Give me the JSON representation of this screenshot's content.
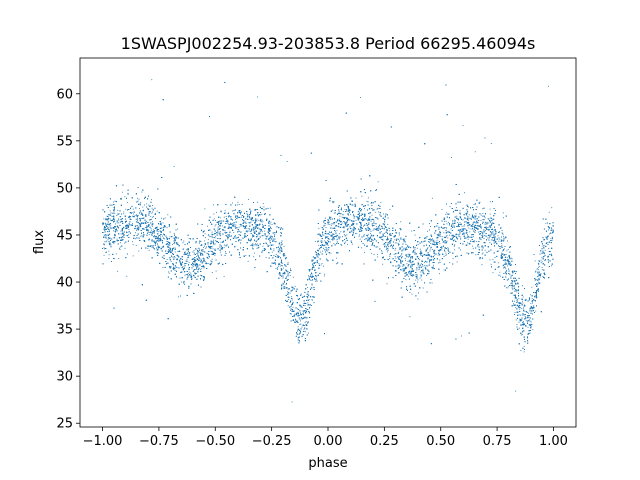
{
  "chart_data": {
    "type": "scatter",
    "title": "1SWASPJ002254.93-203853.8 Period 66295.46094s",
    "xlabel": "phase",
    "ylabel": "flux",
    "xlim": [
      -1.1,
      1.1
    ],
    "ylim": [
      24.6,
      63.8
    ],
    "xticks": [
      -1.0,
      -0.75,
      -0.5,
      -0.25,
      0.0,
      0.25,
      0.5,
      0.75,
      1.0
    ],
    "xtick_labels": [
      "−1.00",
      "−0.75",
      "−0.50",
      "−0.25",
      "0.00",
      "0.25",
      "0.50",
      "0.75",
      "1.00"
    ],
    "yticks": [
      25,
      30,
      35,
      40,
      45,
      50,
      55,
      60
    ],
    "ytick_labels": [
      "25",
      "30",
      "35",
      "40",
      "45",
      "50",
      "55",
      "60"
    ],
    "grid": false,
    "marker_color": "#1f77b4",
    "series": [
      {
        "name": "",
        "x": [
          -1.0,
          -0.95,
          -0.9,
          -0.85,
          -0.8,
          -0.75,
          -0.7,
          -0.65,
          -0.6,
          -0.55,
          -0.5,
          -0.45,
          -0.4,
          -0.35,
          -0.3,
          -0.25,
          -0.2,
          -0.175,
          -0.15,
          -0.125,
          -0.1,
          -0.075,
          -0.05,
          0.0,
          0.05,
          0.1,
          0.15,
          0.2,
          0.25,
          0.3,
          0.35,
          0.4,
          0.45,
          0.5,
          0.55,
          0.6,
          0.65,
          0.7,
          0.75,
          0.8,
          0.825,
          0.85,
          0.875,
          0.9,
          0.925,
          0.95,
          1.0
        ],
        "y": [
          45.2,
          45.8,
          46.3,
          46.4,
          46.0,
          45.0,
          43.5,
          42.2,
          42.0,
          43.0,
          44.5,
          45.5,
          45.8,
          45.7,
          45.3,
          44.5,
          42.0,
          39.0,
          36.5,
          35.8,
          36.5,
          39.5,
          42.5,
          45.2,
          45.8,
          46.3,
          46.4,
          46.0,
          45.0,
          43.5,
          42.2,
          42.0,
          43.0,
          44.5,
          45.5,
          45.8,
          45.7,
          45.3,
          44.5,
          42.0,
          39.0,
          36.5,
          35.8,
          36.5,
          39.5,
          42.5,
          45.2
        ]
      }
    ]
  }
}
